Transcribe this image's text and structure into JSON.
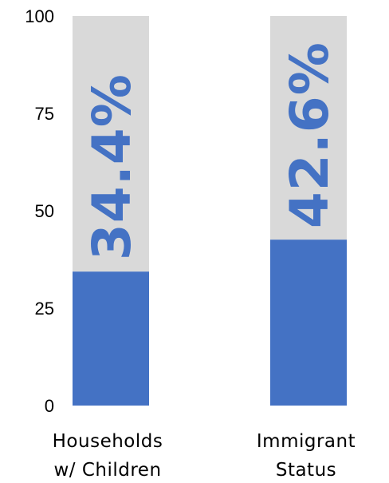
{
  "chart_data": {
    "type": "bar",
    "stacked": true,
    "orientation": "vertical",
    "categories": [
      [
        "Households",
        "w/ Children"
      ],
      [
        "Immigrant",
        "Status"
      ]
    ],
    "series": [
      {
        "values": [
          34.4,
          42.6
        ],
        "color": "#4472c4"
      },
      {
        "values": [
          65.6,
          57.4
        ],
        "color": "#d9d9d9"
      }
    ],
    "data_labels": [
      "34.4%",
      "42.6%"
    ],
    "data_label_color": "#4472c4",
    "data_label_orientation": "vertical",
    "yticks": [
      0,
      25,
      50,
      75,
      100
    ],
    "ylim": [
      0,
      100
    ],
    "title": "",
    "xlabel": "",
    "ylabel": "",
    "grid": false,
    "legend": "none"
  }
}
